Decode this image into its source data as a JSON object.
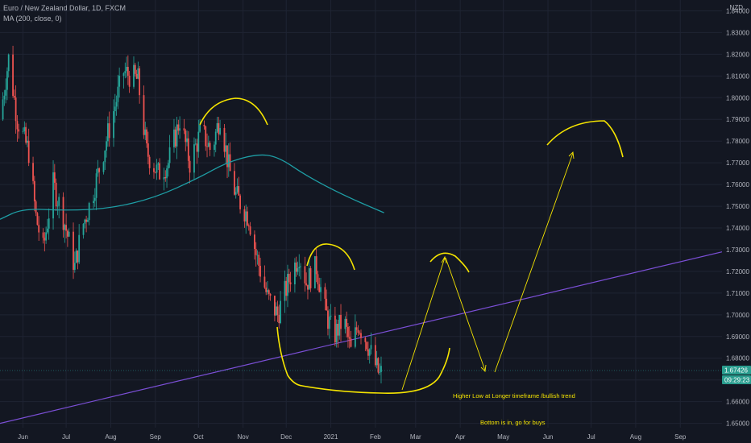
{
  "legend": {
    "symbol": "Euro / New Zealand Dollar, 1D, FXCM",
    "indicator": "MA (200, close, 0)"
  },
  "currency_label": "NZD",
  "price_badges": {
    "last": "1.67426",
    "countdown": "09:29:23"
  },
  "colors": {
    "background": "#131722",
    "grid": "#1f2433",
    "up": "#26a69a",
    "down": "#ef5350",
    "ma": "#1e9ea5",
    "trendline": "#7b4fd6",
    "drawing": "#f5e400",
    "badge": "#2a9d8f"
  },
  "chart_data": {
    "type": "candlestick",
    "title": "Euro / New Zealand Dollar, 1D, FXCM",
    "ylim": [
      1.648,
      1.845
    ],
    "y_ticks": [
      1.65,
      1.66,
      1.67,
      1.68,
      1.69,
      1.7,
      1.71,
      1.72,
      1.73,
      1.74,
      1.75,
      1.76,
      1.77,
      1.78,
      1.79,
      1.8,
      1.81,
      1.82,
      1.83,
      1.84
    ],
    "y_tick_labels": [
      "1.65000",
      "1.66000",
      "1.67000",
      "1.68000",
      "1.69000",
      "1.70000",
      "1.71000",
      "1.72000",
      "1.73000",
      "1.74000",
      "1.75000",
      "1.76000",
      "1.77000",
      "1.78000",
      "1.79000",
      "1.80000",
      "1.81000",
      "1.82000",
      "1.83000",
      "1.84000"
    ],
    "x_range": [
      "2020-05-16",
      "2021-09-30"
    ],
    "x_ticks": [
      "2020-06-01",
      "2020-07-01",
      "2020-08-01",
      "2020-09-01",
      "2020-10-01",
      "2020-11-01",
      "2020-12-01",
      "2021-01-01",
      "2021-02-01",
      "2021-03-01",
      "2021-04-01",
      "2021-05-01",
      "2021-06-01",
      "2021-07-01",
      "2021-08-01",
      "2021-09-01"
    ],
    "x_tick_labels": [
      "Jun",
      "Jul",
      "Aug",
      "Sep",
      "Oct",
      "Nov",
      "Dec",
      "2021",
      "Feb",
      "Mar",
      "Apr",
      "May",
      "Jun",
      "Jul",
      "Aug",
      "Sep"
    ],
    "price_path": [
      {
        "date": "2020-05-16",
        "close": 1.79
      },
      {
        "date": "2020-05-22",
        "close": 1.818
      },
      {
        "date": "2020-05-28",
        "close": 1.79
      },
      {
        "date": "2020-06-05",
        "close": 1.775
      },
      {
        "date": "2020-06-10",
        "close": 1.745
      },
      {
        "date": "2020-06-15",
        "close": 1.73
      },
      {
        "date": "2020-06-22",
        "close": 1.76
      },
      {
        "date": "2020-06-29",
        "close": 1.745
      },
      {
        "date": "2020-07-07",
        "close": 1.722
      },
      {
        "date": "2020-07-12",
        "close": 1.74
      },
      {
        "date": "2020-07-18",
        "close": 1.752
      },
      {
        "date": "2020-07-25",
        "close": 1.77
      },
      {
        "date": "2020-07-31",
        "close": 1.786
      },
      {
        "date": "2020-08-10",
        "close": 1.812
      },
      {
        "date": "2020-08-20",
        "close": 1.808
      },
      {
        "date": "2020-08-26",
        "close": 1.775
      },
      {
        "date": "2020-09-03",
        "close": 1.765
      },
      {
        "date": "2020-09-10",
        "close": 1.77
      },
      {
        "date": "2020-09-18",
        "close": 1.79
      },
      {
        "date": "2020-09-25",
        "close": 1.77
      },
      {
        "date": "2020-10-03",
        "close": 1.785
      },
      {
        "date": "2020-10-10",
        "close": 1.775
      },
      {
        "date": "2020-10-16",
        "close": 1.792
      },
      {
        "date": "2020-10-22",
        "close": 1.768
      },
      {
        "date": "2020-10-27",
        "close": 1.755
      },
      {
        "date": "2020-11-05",
        "close": 1.745
      },
      {
        "date": "2020-11-10",
        "close": 1.728
      },
      {
        "date": "2020-11-18",
        "close": 1.708
      },
      {
        "date": "2020-11-25",
        "close": 1.7
      },
      {
        "date": "2020-12-04",
        "close": 1.718
      },
      {
        "date": "2020-12-10",
        "close": 1.728
      },
      {
        "date": "2020-12-15",
        "close": 1.715
      },
      {
        "date": "2020-12-22",
        "close": 1.722
      },
      {
        "date": "2020-12-28",
        "close": 1.702
      },
      {
        "date": "2021-01-03",
        "close": 1.69
      },
      {
        "date": "2021-01-10",
        "close": 1.698
      },
      {
        "date": "2021-01-15",
        "close": 1.683
      },
      {
        "date": "2021-01-20",
        "close": 1.696
      },
      {
        "date": "2021-01-26",
        "close": 1.688
      },
      {
        "date": "2021-01-30",
        "close": 1.68
      },
      {
        "date": "2021-02-04",
        "close": 1.672
      },
      {
        "date": "2021-02-07",
        "close": 1.675
      }
    ],
    "ma_200": {
      "name": "MA (200, close, 0)",
      "points": [
        {
          "date": "2020-05-16",
          "value": 1.744
        },
        {
          "date": "2020-06-01",
          "value": 1.749
        },
        {
          "date": "2020-07-01",
          "value": 1.748
        },
        {
          "date": "2020-08-01",
          "value": 1.749
        },
        {
          "date": "2020-09-01",
          "value": 1.754
        },
        {
          "date": "2020-10-01",
          "value": 1.763
        },
        {
          "date": "2020-10-20",
          "value": 1.77
        },
        {
          "date": "2020-11-10",
          "value": 1.774
        },
        {
          "date": "2020-11-25",
          "value": 1.773
        },
        {
          "date": "2020-12-15",
          "value": 1.764
        },
        {
          "date": "2021-01-10",
          "value": 1.755
        },
        {
          "date": "2021-02-07",
          "value": 1.747
        }
      ]
    },
    "trendline": [
      {
        "date": "2020-05-16",
        "value": 1.65
      },
      {
        "date": "2021-09-30",
        "value": 1.729
      }
    ],
    "last_price": 1.67426,
    "annotations": [
      "Higher Low at Longer timeframe /bullish trend",
      "Bottom is in, go for buys"
    ],
    "grid": true
  }
}
